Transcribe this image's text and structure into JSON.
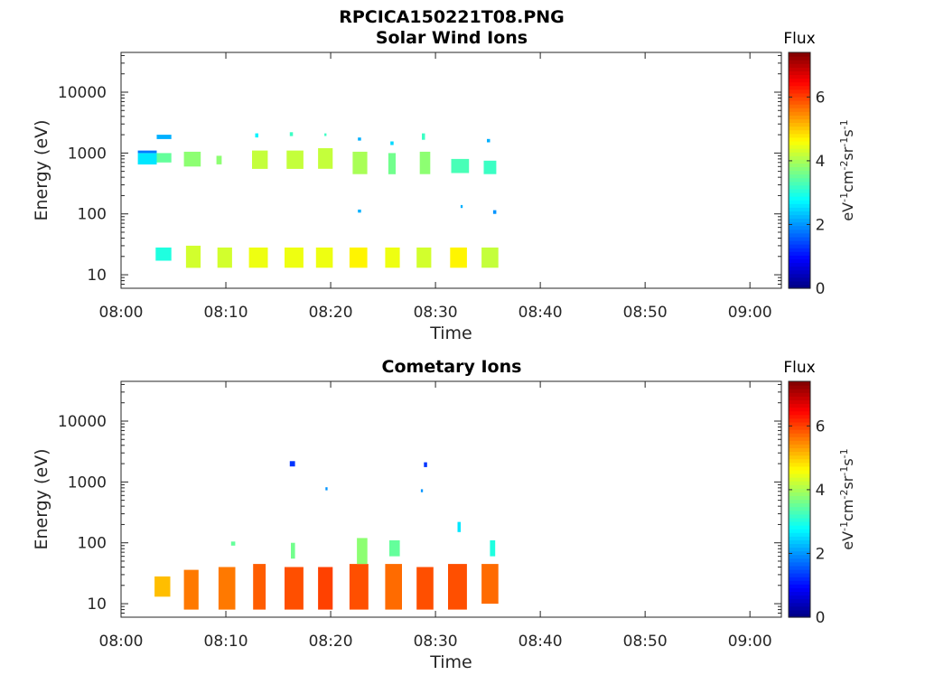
{
  "figure_title": "RPCICA150221T08.PNG",
  "colorbar_label_parts": [
    "eV",
    "-1",
    "cm",
    "-2",
    "sr",
    "-1",
    "s",
    "-1"
  ],
  "chart_data": [
    {
      "type": "heatmap",
      "title": "Solar Wind Ions",
      "xlabel": "Time",
      "ylabel": "Energy (eV)",
      "x_ticks": [
        "08:00",
        "08:10",
        "08:20",
        "08:30",
        "08:40",
        "08:50",
        "09:00"
      ],
      "x_range_minutes": [
        0,
        63
      ],
      "y_scale": "log",
      "y_ticks": [
        "10",
        "100",
        "1000",
        "10000"
      ],
      "y_range": [
        6,
        45000
      ],
      "colorbar": {
        "title": "Flux",
        "ticks": [
          "0",
          "2",
          "4",
          "6"
        ],
        "range": [
          0,
          7.4
        ],
        "colormap": "jet"
      },
      "blocks": [
        {
          "t": [
            1.6,
            3.4
          ],
          "e": [
            650,
            1000
          ],
          "v": 2.6
        },
        {
          "t": [
            1.6,
            3.4
          ],
          "e": [
            1000,
            1100
          ],
          "v": 1.8
        },
        {
          "t": [
            3.4,
            4.8
          ],
          "e": [
            700,
            1000
          ],
          "v": 3.5
        },
        {
          "t": [
            3.4,
            4.8
          ],
          "e": [
            1700,
            2000
          ],
          "v": 2.2
        },
        {
          "t": [
            6.0,
            7.6
          ],
          "e": [
            600,
            1050
          ],
          "v": 3.8
        },
        {
          "t": [
            9.1,
            9.6
          ],
          "e": [
            650,
            900
          ],
          "v": 3.8
        },
        {
          "t": [
            12.5,
            14.0
          ],
          "e": [
            550,
            1100
          ],
          "v": 4.2
        },
        {
          "t": [
            12.8,
            13.1
          ],
          "e": [
            1800,
            2100
          ],
          "v": 2.7
        },
        {
          "t": [
            15.8,
            17.4
          ],
          "e": [
            550,
            1100
          ],
          "v": 4.2
        },
        {
          "t": [
            16.1,
            16.4
          ],
          "e": [
            1900,
            2200
          ],
          "v": 3.2
        },
        {
          "t": [
            18.8,
            20.2
          ],
          "e": [
            550,
            1200
          ],
          "v": 4.2
        },
        {
          "t": [
            19.4,
            19.6
          ],
          "e": [
            1900,
            2100
          ],
          "v": 3.2
        },
        {
          "t": [
            22.1,
            23.5
          ],
          "e": [
            450,
            1050
          ],
          "v": 4.0
        },
        {
          "t": [
            22.6,
            22.9
          ],
          "e": [
            1600,
            1800
          ],
          "v": 2.2
        },
        {
          "t": [
            25.5,
            26.2
          ],
          "e": [
            450,
            1000
          ],
          "v": 3.6
        },
        {
          "t": [
            25.7,
            26.0
          ],
          "e": [
            1350,
            1550
          ],
          "v": 2.5
        },
        {
          "t": [
            28.5,
            29.5
          ],
          "e": [
            450,
            1050
          ],
          "v": 3.8
        },
        {
          "t": [
            28.7,
            29.0
          ],
          "e": [
            1650,
            2100
          ],
          "v": 3.2
        },
        {
          "t": [
            31.5,
            33.2
          ],
          "e": [
            470,
            800
          ],
          "v": 3.3
        },
        {
          "t": [
            34.6,
            35.8
          ],
          "e": [
            450,
            750
          ],
          "v": 3.2
        },
        {
          "t": [
            34.9,
            35.2
          ],
          "e": [
            1500,
            1700
          ],
          "v": 2.2
        },
        {
          "t": [
            22.6,
            22.9
          ],
          "e": [
            105,
            118
          ],
          "v": 2.2
        },
        {
          "t": [
            32.4,
            32.6
          ],
          "e": [
            125,
            140
          ],
          "v": 2.2
        },
        {
          "t": [
            35.5,
            35.8
          ],
          "e": [
            100,
            115
          ],
          "v": 2.0
        },
        {
          "t": [
            3.3,
            4.8
          ],
          "e": [
            17,
            28
          ],
          "v": 3.0
        },
        {
          "t": [
            6.2,
            7.6
          ],
          "e": [
            13,
            30
          ],
          "v": 4.3
        },
        {
          "t": [
            9.2,
            10.6
          ],
          "e": [
            13,
            28
          ],
          "v": 4.3
        },
        {
          "t": [
            12.2,
            14.0
          ],
          "e": [
            13,
            28
          ],
          "v": 4.5
        },
        {
          "t": [
            15.6,
            17.4
          ],
          "e": [
            13,
            28
          ],
          "v": 4.5
        },
        {
          "t": [
            18.6,
            20.2
          ],
          "e": [
            13,
            28
          ],
          "v": 4.5
        },
        {
          "t": [
            21.8,
            23.5
          ],
          "e": [
            13,
            28
          ],
          "v": 4.7
        },
        {
          "t": [
            25.2,
            26.6
          ],
          "e": [
            13,
            28
          ],
          "v": 4.5
        },
        {
          "t": [
            28.2,
            29.6
          ],
          "e": [
            13,
            28
          ],
          "v": 4.3
        },
        {
          "t": [
            31.4,
            33.0
          ],
          "e": [
            13,
            28
          ],
          "v": 4.7
        },
        {
          "t": [
            34.4,
            36.0
          ],
          "e": [
            13,
            28
          ],
          "v": 4.2
        }
      ]
    },
    {
      "type": "heatmap",
      "title": "Cometary Ions",
      "xlabel": "Time",
      "ylabel": "Energy (eV)",
      "x_ticks": [
        "08:00",
        "08:10",
        "08:20",
        "08:30",
        "08:40",
        "08:50",
        "09:00"
      ],
      "x_range_minutes": [
        0,
        63
      ],
      "y_scale": "log",
      "y_ticks": [
        "10",
        "100",
        "1000",
        "10000"
      ],
      "y_range": [
        6,
        45000
      ],
      "colorbar": {
        "title": "Flux",
        "ticks": [
          "0",
          "2",
          "4",
          "6"
        ],
        "range": [
          0,
          7.4
        ],
        "colormap": "jet"
      },
      "blocks": [
        {
          "t": [
            3.2,
            4.7
          ],
          "e": [
            13,
            28
          ],
          "v": 5.1
        },
        {
          "t": [
            6.0,
            7.4
          ],
          "e": [
            8,
            36
          ],
          "v": 5.6
        },
        {
          "t": [
            9.3,
            10.9
          ],
          "e": [
            8,
            40
          ],
          "v": 5.6
        },
        {
          "t": [
            12.6,
            13.8
          ],
          "e": [
            8,
            45
          ],
          "v": 5.8
        },
        {
          "t": [
            15.6,
            17.4
          ],
          "e": [
            8,
            40
          ],
          "v": 5.9
        },
        {
          "t": [
            18.8,
            20.2
          ],
          "e": [
            8,
            40
          ],
          "v": 6.0
        },
        {
          "t": [
            21.8,
            23.6
          ],
          "e": [
            8,
            45
          ],
          "v": 5.9
        },
        {
          "t": [
            25.2,
            26.8
          ],
          "e": [
            8,
            45
          ],
          "v": 5.7
        },
        {
          "t": [
            28.2,
            29.8
          ],
          "e": [
            8,
            40
          ],
          "v": 5.9
        },
        {
          "t": [
            31.2,
            33.0
          ],
          "e": [
            8,
            45
          ],
          "v": 5.9
        },
        {
          "t": [
            34.4,
            36.0
          ],
          "e": [
            10,
            45
          ],
          "v": 5.7
        },
        {
          "t": [
            10.5,
            10.9
          ],
          "e": [
            90,
            105
          ],
          "v": 3.5
        },
        {
          "t": [
            16.2,
            16.6
          ],
          "e": [
            55,
            100
          ],
          "v": 3.6
        },
        {
          "t": [
            22.5,
            23.5
          ],
          "e": [
            45,
            120
          ],
          "v": 3.8
        },
        {
          "t": [
            25.6,
            26.6
          ],
          "e": [
            60,
            110
          ],
          "v": 3.5
        },
        {
          "t": [
            32.1,
            32.4
          ],
          "e": [
            150,
            220
          ],
          "v": 2.6
        },
        {
          "t": [
            35.2,
            35.7
          ],
          "e": [
            60,
            110
          ],
          "v": 3.0
        },
        {
          "t": [
            16.1,
            16.6
          ],
          "e": [
            1800,
            2200
          ],
          "v": 1.3
        },
        {
          "t": [
            28.9,
            29.2
          ],
          "e": [
            1750,
            2100
          ],
          "v": 1.3
        },
        {
          "t": [
            19.5,
            19.7
          ],
          "e": [
            730,
            820
          ],
          "v": 2.0
        },
        {
          "t": [
            28.6,
            28.8
          ],
          "e": [
            680,
            760
          ],
          "v": 2.0
        }
      ]
    }
  ]
}
